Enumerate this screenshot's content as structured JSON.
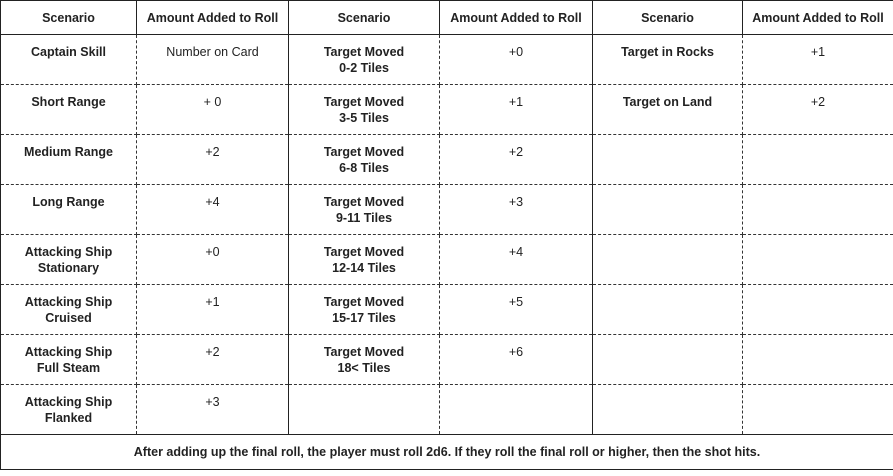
{
  "headers": [
    "Scenario",
    "Amount Added to Roll",
    "Scenario",
    "Amount Added to Roll",
    "Scenario",
    "Amount Added to Roll"
  ],
  "rows": [
    [
      [
        "Captain Skill"
      ],
      [
        "Number on Card"
      ],
      [
        "Target Moved",
        "0-2 Tiles"
      ],
      [
        "+0"
      ],
      [
        "Target in Rocks"
      ],
      [
        "+1"
      ]
    ],
    [
      [
        "Short Range"
      ],
      [
        "+ 0"
      ],
      [
        "Target Moved",
        "3-5 Tiles"
      ],
      [
        "+1"
      ],
      [
        "Target on Land"
      ],
      [
        "+2"
      ]
    ],
    [
      [
        "Medium Range"
      ],
      [
        "+2"
      ],
      [
        "Target Moved",
        "6-8 Tiles"
      ],
      [
        "+2"
      ],
      [],
      []
    ],
    [
      [
        "Long Range"
      ],
      [
        "+4"
      ],
      [
        "Target Moved",
        "9-11 Tiles"
      ],
      [
        "+3"
      ],
      [],
      []
    ],
    [
      [
        "Attacking Ship",
        "Stationary"
      ],
      [
        "+0"
      ],
      [
        "Target Moved",
        "12-14 Tiles"
      ],
      [
        "+4"
      ],
      [],
      []
    ],
    [
      [
        "Attacking Ship",
        "Cruised"
      ],
      [
        "+1"
      ],
      [
        "Target Moved",
        "15-17 Tiles"
      ],
      [
        "+5"
      ],
      [],
      []
    ],
    [
      [
        "Attacking Ship",
        "Full Steam"
      ],
      [
        "+2"
      ],
      [
        "Target Moved",
        "18< Tiles"
      ],
      [
        "+6"
      ],
      [],
      []
    ],
    [
      [
        "Attacking Ship",
        "Flanked"
      ],
      [
        "+3"
      ],
      [],
      [],
      [],
      []
    ]
  ],
  "footer": "After adding up the final roll, the player must roll 2d6. If they roll the final roll or higher, then the shot hits."
}
